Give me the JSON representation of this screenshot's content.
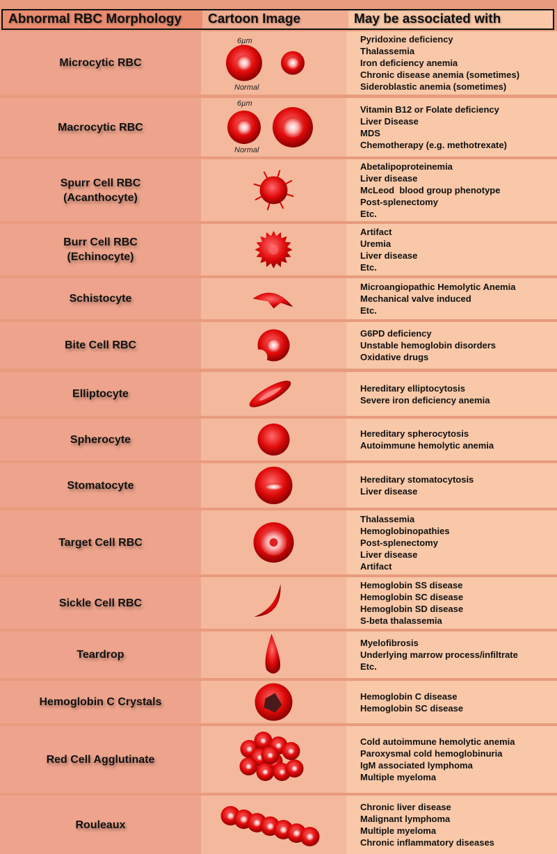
{
  "header": {
    "col1": "Abnormal RBC Morphology",
    "col2": "Cartoon Image",
    "col3": "May be associated with"
  },
  "labels": {
    "size": "6µm",
    "normal": "Normal"
  },
  "rows": [
    {
      "name": "Microcytic RBC",
      "icon": "microcytic",
      "assoc": [
        "Pyridoxine deficiency",
        "Thalassemia",
        "Iron deficiency anemia",
        "Chronic disease anemia (sometimes)",
        "Sideroblastic anemia (sometimes)"
      ]
    },
    {
      "name": "Macrocytic RBC",
      "icon": "macrocytic",
      "assoc": [
        "Vitamin B12 or Folate deficiency",
        "Liver Disease",
        "MDS",
        "Chemotherapy (e.g. methotrexate)"
      ]
    },
    {
      "name": "Spurr Cell RBC\n(Acanthocyte)",
      "icon": "acanthocyte",
      "assoc": [
        "Abetalipoproteinemia",
        "Liver disease",
        "McLeod  blood group phenotype",
        "Post-splenectomy",
        "Etc."
      ]
    },
    {
      "name": "Burr Cell RBC\n(Echinocyte)",
      "icon": "echinocyte",
      "assoc": [
        "Artifact",
        "Uremia",
        "Liver disease",
        "Etc."
      ]
    },
    {
      "name": "Schistocyte",
      "icon": "schistocyte",
      "assoc": [
        "Microangiopathic Hemolytic Anemia",
        "Mechanical valve induced",
        "Etc."
      ]
    },
    {
      "name": "Bite Cell RBC",
      "icon": "bite-cell",
      "assoc": [
        "G6PD deficiency",
        "Unstable hemoglobin disorders",
        "Oxidative drugs"
      ]
    },
    {
      "name": "Elliptocyte",
      "icon": "elliptocyte",
      "assoc": [
        "Hereditary elliptocytosis",
        "Severe iron deficiency anemia"
      ]
    },
    {
      "name": "Spherocyte",
      "icon": "spherocyte",
      "assoc": [
        "Hereditary spherocytosis",
        "Autoimmune hemolytic anemia"
      ]
    },
    {
      "name": "Stomatocyte",
      "icon": "stomatocyte",
      "assoc": [
        "Hereditary stomatocytosis",
        "Liver disease"
      ]
    },
    {
      "name": "Target Cell RBC",
      "icon": "target-cell",
      "assoc": [
        "Thalassemia",
        "Hemoglobinopathies",
        "Post-splenectomy",
        "Liver disease",
        "Artifact"
      ]
    },
    {
      "name": "Sickle Cell RBC",
      "icon": "sickle-cell",
      "assoc": [
        "Hemoglobin SS disease",
        "Hemoglobin SC disease",
        "Hemoglobin SD disease",
        "S-beta thalassemia"
      ]
    },
    {
      "name": "Teardrop",
      "icon": "teardrop",
      "assoc": [
        "Myelofibrosis",
        "Underlying marrow process/infiltrate",
        "Etc."
      ]
    },
    {
      "name": "Hemoglobin C Crystals",
      "icon": "hbc-crystal",
      "assoc": [
        "Hemoglobin C disease",
        "Hemoglobin SC disease"
      ]
    },
    {
      "name": "Red Cell Agglutinate",
      "icon": "agglutinate",
      "assoc": [
        "Cold autoimmune hemolytic anemia",
        "Paroxysmal cold hemoglobinuria",
        "IgM associated lymphoma",
        "Multiple myeloma"
      ]
    },
    {
      "name": "Rouleaux",
      "icon": "rouleaux",
      "assoc": [
        "Chronic liver disease",
        "Malignant lymphoma",
        "Multiple myeloma",
        "Chronic inflammatory diseases"
      ]
    }
  ]
}
